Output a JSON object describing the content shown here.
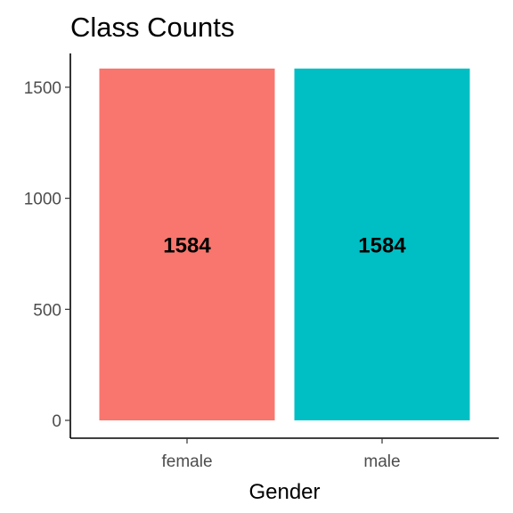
{
  "chart_data": {
    "type": "bar",
    "title": "Class Counts",
    "xlabel": "Gender",
    "ylabel": "",
    "categories": [
      "female",
      "male"
    ],
    "values": [
      1584,
      1584
    ],
    "data_labels": [
      "1584",
      "1584"
    ],
    "colors": [
      "#F8766D",
      "#00BFC4"
    ],
    "ylim": [
      0,
      1584
    ],
    "yticks": [
      0,
      500,
      1000,
      1500
    ],
    "ytick_labels": [
      "0",
      "500",
      "1000",
      "1500"
    ],
    "grid": false,
    "legend": "none"
  }
}
